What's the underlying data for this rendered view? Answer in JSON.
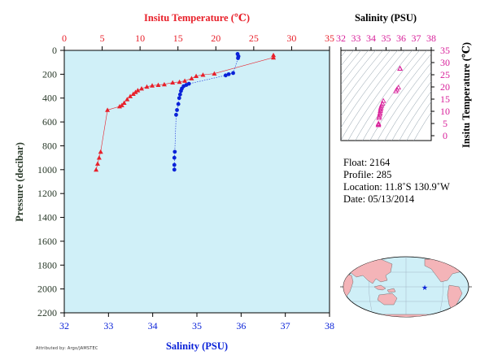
{
  "colors": {
    "plot_bg": "#d0f0f8",
    "temperature": "#e8202a",
    "salinity": "#0a22d8",
    "axis_dark": "#2a3a2a",
    "magenta": "#d8209a",
    "land": "#f4b4b8",
    "ocean": "#cfeff7"
  },
  "info": {
    "float_label": "Float:",
    "float_value": "2164",
    "profile_label": "Profile:",
    "profile_value": "285",
    "location_label": "Location:",
    "location_value": "11.8˚S  130.9˚W",
    "date_label": "Date:",
    "date_value": "05/13/2014"
  },
  "footer_stamp": "Attributed by: Argo/JAMSTEC",
  "chart_data": [
    {
      "type": "line",
      "id": "profile",
      "xlabel_top": "Insitu Temperature (℃)",
      "xlabel_bottom": "Salinity (PSU)",
      "ylabel": "Pressure (decibar)",
      "xlim_temperature": [
        0,
        35
      ],
      "xticks_temperature": [
        0,
        5,
        10,
        15,
        20,
        25,
        30,
        35
      ],
      "xlim_salinity": [
        32,
        38
      ],
      "xticks_salinity": [
        32,
        33,
        34,
        35,
        36,
        37,
        38
      ],
      "ylim": [
        0,
        2200
      ],
      "yticks": [
        0,
        200,
        400,
        600,
        800,
        1000,
        1200,
        1400,
        1600,
        1800,
        2000,
        2200
      ],
      "y_reversed": true,
      "grid": false,
      "series": [
        {
          "name": "Insitu Temperature",
          "axis": "top",
          "marker": "triangle",
          "points": [
            [
              27.6,
              40
            ],
            [
              27.6,
              60
            ],
            [
              19.8,
              195
            ],
            [
              18.3,
              205
            ],
            [
              17.4,
              215
            ],
            [
              16.8,
              235
            ],
            [
              15.9,
              255
            ],
            [
              15.2,
              265
            ],
            [
              14.3,
              270
            ],
            [
              13.2,
              285
            ],
            [
              12.4,
              290
            ],
            [
              11.6,
              295
            ],
            [
              10.9,
              305
            ],
            [
              10.2,
              320
            ],
            [
              9.7,
              335
            ],
            [
              9.4,
              350
            ],
            [
              9.1,
              365
            ],
            [
              8.7,
              385
            ],
            [
              8.3,
              410
            ],
            [
              7.9,
              440
            ],
            [
              7.6,
              460
            ],
            [
              7.3,
              470
            ],
            [
              5.7,
              500
            ],
            [
              4.8,
              850
            ],
            [
              4.6,
              900
            ],
            [
              4.4,
              950
            ],
            [
              4.2,
              1000
            ]
          ]
        },
        {
          "name": "Salinity",
          "axis": "bottom",
          "marker": "circle",
          "points": [
            [
              35.92,
              30
            ],
            [
              35.94,
              50
            ],
            [
              35.93,
              65
            ],
            [
              35.82,
              190
            ],
            [
              35.72,
              200
            ],
            [
              35.65,
              210
            ],
            [
              34.82,
              280
            ],
            [
              34.76,
              290
            ],
            [
              34.7,
              300
            ],
            [
              34.66,
              320
            ],
            [
              34.64,
              340
            ],
            [
              34.62,
              370
            ],
            [
              34.6,
              400
            ],
            [
              34.58,
              450
            ],
            [
              34.55,
              500
            ],
            [
              34.53,
              540
            ],
            [
              34.5,
              850
            ],
            [
              34.49,
              900
            ],
            [
              34.49,
              960
            ],
            [
              34.49,
              1000
            ]
          ]
        }
      ]
    },
    {
      "type": "scatter",
      "id": "ts_diagram",
      "xlabel": "Salinity (PSU)",
      "ylabel": "Insitu Temperature (℃)",
      "xlim": [
        32,
        38
      ],
      "xticks": [
        32,
        33,
        34,
        35,
        36,
        37,
        38
      ],
      "ylim": [
        -2,
        35
      ],
      "yticks": [
        0,
        5,
        10,
        15,
        20,
        25,
        30,
        35
      ],
      "grid": false,
      "density_contours": true,
      "points": [
        [
          35.93,
          27.6
        ],
        [
          35.92,
          27.5
        ],
        [
          35.82,
          19.8
        ],
        [
          35.72,
          19.0
        ],
        [
          35.65,
          18.3
        ],
        [
          34.82,
          14.3
        ],
        [
          34.76,
          13.2
        ],
        [
          34.7,
          12.4
        ],
        [
          34.66,
          11.6
        ],
        [
          34.64,
          10.9
        ],
        [
          34.62,
          10.2
        ],
        [
          34.6,
          9.4
        ],
        [
          34.58,
          8.7
        ],
        [
          34.55,
          7.9
        ],
        [
          34.53,
          7.3
        ],
        [
          34.5,
          5.0
        ],
        [
          34.49,
          4.7
        ],
        [
          34.49,
          4.4
        ]
      ]
    }
  ]
}
